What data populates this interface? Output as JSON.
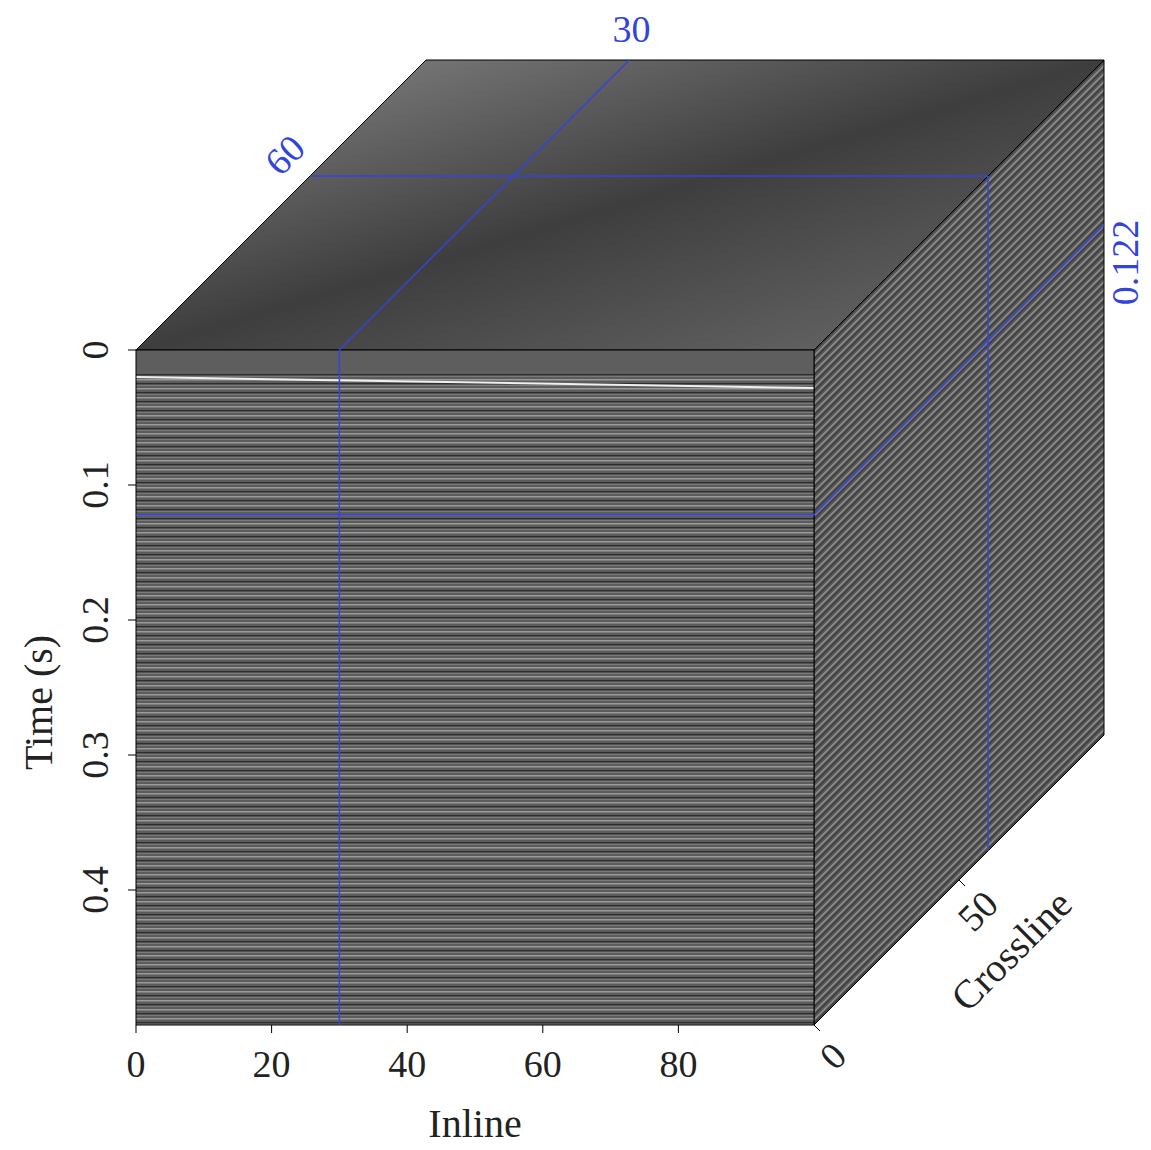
{
  "chart_data": {
    "type": "cube",
    "xlabel": "Inline",
    "ylabel": "Time (s)",
    "zlabel": "Crossline",
    "xlim": [
      0,
      100
    ],
    "xticks": [
      0,
      20,
      40,
      60,
      80
    ],
    "ylim": [
      0,
      0.5
    ],
    "yticks": [
      0,
      0.1,
      0.2,
      0.3,
      0.4
    ],
    "zlim": [
      0,
      100
    ],
    "zticks": [
      0,
      50
    ],
    "slices": {
      "x": 30,
      "y": 0.122,
      "z": 60
    },
    "color": "#3344dd"
  }
}
